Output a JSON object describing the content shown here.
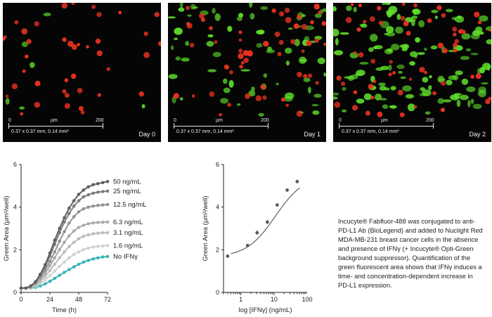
{
  "images": [
    {
      "day_label": "Day 0",
      "scale_zero": "0",
      "scale_unit": "µm",
      "scale_max": "200",
      "dimensions": "0.37 x 0.37 mm, 0.14 mm²"
    },
    {
      "day_label": "Day 1",
      "scale_zero": "0",
      "scale_unit": "µm",
      "scale_max": "200",
      "dimensions": "0.37 x 0.37 mm, 0.14 mm²"
    },
    {
      "day_label": "Day 2",
      "scale_zero": "0",
      "scale_unit": "µm",
      "scale_max": "200",
      "dimensions": "0.37 x 0.37 mm, 0.14 mm²"
    }
  ],
  "colors": {
    "red_cell": "#e8321f",
    "green_signal": "#5fe02a",
    "no_ifn_series": "#3bb3b8",
    "dark_series": "#606060",
    "curve": "#444444"
  },
  "chart_data": [
    {
      "type": "line",
      "xlabel": "Time (h)",
      "ylabel": "Green Area (µm²/well)",
      "xlim": [
        0,
        72
      ],
      "ylim": [
        0,
        6
      ],
      "xticks": [
        0,
        24,
        48,
        72
      ],
      "yticks": [
        0,
        2,
        4,
        6
      ],
      "legend_placement": "right (inline labels)",
      "x": [
        0,
        4,
        8,
        12,
        16,
        20,
        24,
        28,
        32,
        36,
        40,
        44,
        48,
        52,
        56,
        60,
        64,
        68,
        72
      ],
      "series": [
        {
          "name": "50 ng/mL",
          "color": "#606060",
          "values": [
            0.2,
            0.2,
            0.3,
            0.5,
            0.85,
            1.3,
            1.85,
            2.45,
            3.0,
            3.5,
            3.95,
            4.3,
            4.6,
            4.8,
            4.95,
            5.05,
            5.1,
            5.15,
            5.2
          ]
        },
        {
          "name": "25 ng/mL",
          "color": "#7c7c7c",
          "values": [
            0.2,
            0.2,
            0.3,
            0.48,
            0.8,
            1.2,
            1.7,
            2.25,
            2.8,
            3.3,
            3.7,
            4.05,
            4.3,
            4.48,
            4.58,
            4.65,
            4.7,
            4.73,
            4.75
          ]
        },
        {
          "name": "12.5 ng/mL",
          "color": "#939393",
          "values": [
            0.2,
            0.2,
            0.28,
            0.45,
            0.72,
            1.05,
            1.45,
            1.9,
            2.4,
            2.85,
            3.25,
            3.55,
            3.78,
            3.92,
            4.0,
            4.05,
            4.08,
            4.1,
            4.12
          ]
        },
        {
          "name": "6.3 ng/mL",
          "color": "#aaaaaa",
          "values": [
            0.2,
            0.2,
            0.26,
            0.4,
            0.62,
            0.9,
            1.25,
            1.62,
            2.0,
            2.35,
            2.65,
            2.88,
            3.05,
            3.15,
            3.22,
            3.26,
            3.28,
            3.29,
            3.3
          ]
        },
        {
          "name": "3.1 ng/mL",
          "color": "#bdbdbd",
          "values": [
            0.2,
            0.2,
            0.24,
            0.35,
            0.52,
            0.75,
            1.02,
            1.32,
            1.62,
            1.9,
            2.15,
            2.35,
            2.52,
            2.63,
            2.7,
            2.75,
            2.78,
            2.8,
            2.8
          ]
        },
        {
          "name": "1.6 ng/mL",
          "color": "#d2d2d2",
          "values": [
            0.2,
            0.2,
            0.22,
            0.3,
            0.42,
            0.58,
            0.78,
            1.0,
            1.22,
            1.42,
            1.62,
            1.78,
            1.9,
            2.0,
            2.08,
            2.13,
            2.16,
            2.18,
            2.2
          ]
        },
        {
          "name": "No IFNγ",
          "color": "#3bb3b8",
          "values": [
            0.2,
            0.2,
            0.2,
            0.24,
            0.3,
            0.4,
            0.52,
            0.66,
            0.8,
            0.94,
            1.07,
            1.2,
            1.32,
            1.42,
            1.5,
            1.57,
            1.62,
            1.66,
            1.68
          ]
        }
      ]
    },
    {
      "type": "scatter",
      "xlabel": "log [IFNγ] (ng/mL)",
      "ylabel": "Green Area (µm²/well)",
      "xscale": "log",
      "xlim": [
        0.3,
        100
      ],
      "ylim": [
        0,
        6
      ],
      "xtick_labels": [
        "1",
        "10",
        "100"
      ],
      "yticks": [
        0,
        2,
        4,
        6
      ],
      "x": [
        0.4,
        1.6,
        3.1,
        6.3,
        12.5,
        25,
        50
      ],
      "values": [
        1.7,
        2.2,
        2.8,
        3.3,
        4.1,
        4.8,
        5.2
      ],
      "error": [
        0.04,
        0.06,
        0.1,
        0.1,
        0.06,
        0.06,
        0.08
      ],
      "fit": "sigmoidal dose-response curve"
    }
  ],
  "description": "Incucyte® Fabfluor-488 was conjugated to anti-PD-L1 Ab (BioLegend) and added to Nuclight Red MDA-MB-231 breast cancer cells in the absence and presence of IFNγ (+ Incucyte® Opti-Green background suppressor). Quantification of the green fluorescent area shows that IFNγ induces a time- and concentration-dependent increase in PD-L1 expression."
}
